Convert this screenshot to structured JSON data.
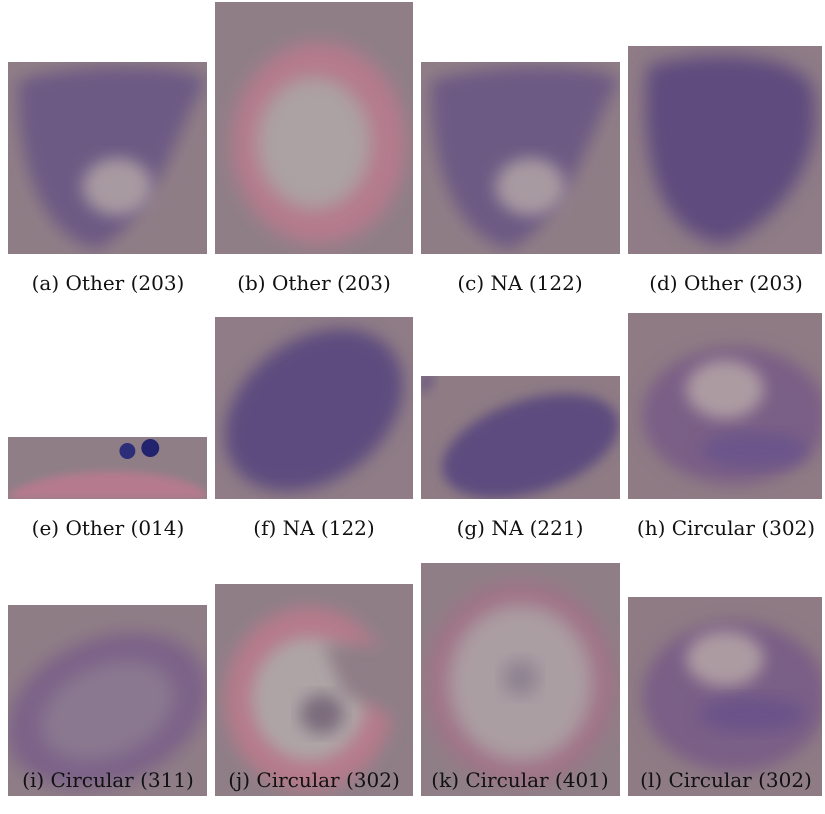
{
  "figure": {
    "panels": [
      {
        "label": "(a) Other (203)"
      },
      {
        "label": "(b) Other (203)"
      },
      {
        "label": "(c) NA (122)"
      },
      {
        "label": "(d) Other (203)"
      },
      {
        "label": "(e) Other (014)"
      },
      {
        "label": "(f) NA (122)"
      },
      {
        "label": "(g) NA (221)"
      },
      {
        "label": "(h) Circular (302)"
      },
      {
        "label": "(i) Circular (311)"
      },
      {
        "label": "(j) Circular (302)"
      },
      {
        "label": "(k) Circular (401)"
      },
      {
        "label": "(l) Circular (302)"
      }
    ]
  },
  "colors": {
    "background": "#8e7b84",
    "cell_purple": "#6f5a84",
    "cell_pink": "#b77a8e",
    "nucleus_blue": "#2d2e7a"
  }
}
